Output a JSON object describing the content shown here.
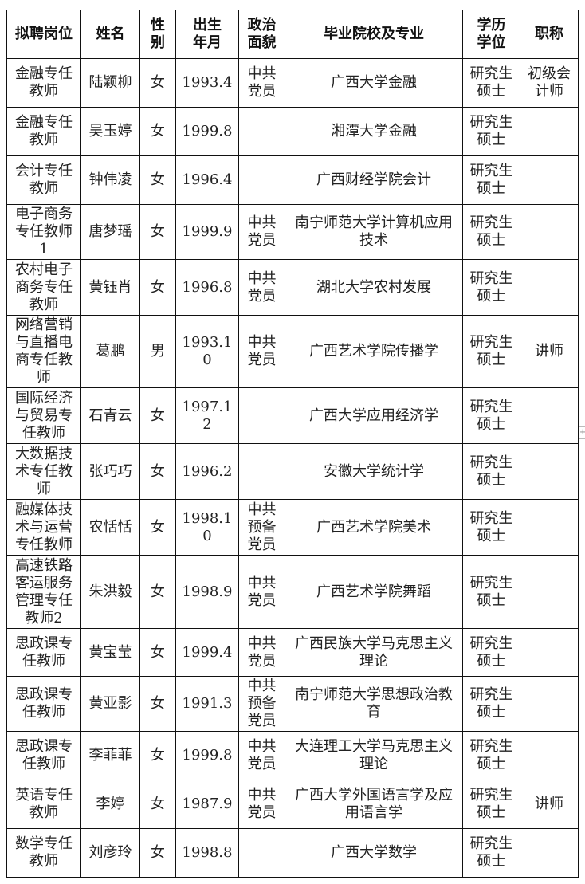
{
  "table": {
    "headers": [
      "拟聘岗位",
      "姓名",
      "性别",
      "出生年月",
      "政治面貌",
      "毕业院校及专业",
      "学历学位",
      "职称"
    ],
    "rows": [
      [
        "金融专任教师",
        "陆颖柳",
        "女",
        "1993.4",
        "中共党员",
        "广西大学金融",
        "研究生硕士",
        "初级会计师"
      ],
      [
        "金融专任教师",
        "吴玉婷",
        "女",
        "1999.8",
        "",
        "湘潭大学金融",
        "研究生硕士",
        ""
      ],
      [
        "会计专任教师",
        "钟伟凌",
        "女",
        "1996.4",
        "",
        "广西财经学院会计",
        "研究生硕士",
        ""
      ],
      [
        "电子商务专任教师1",
        "唐梦瑶",
        "女",
        "1999.9",
        "中共党员",
        "南宁师范大学计算机应用技术",
        "研究生硕士",
        ""
      ],
      [
        "农村电子商务专任教师",
        "黄钰肖",
        "女",
        "1996.8",
        "中共党员",
        "湖北大学农村发展",
        "研究生硕士",
        ""
      ],
      [
        "网络营销与直播电商专任教师",
        "葛鹏",
        "男",
        "1993.10",
        "中共党员",
        "广西艺术学院传播学",
        "研究生硕士",
        "讲师"
      ],
      [
        "国际经济与贸易专任教师",
        "石青云",
        "女",
        "1997.12",
        "",
        "广西大学应用经济学",
        "研究生硕士",
        ""
      ],
      [
        "大数据技术专任教师",
        "张巧巧",
        "女",
        "1996.2",
        "",
        "安徽大学统计学",
        "研究生硕士",
        ""
      ],
      [
        "融媒体技术与运营专任教师",
        "农恬恬",
        "女",
        "1998.10",
        "中共预备党员",
        "广西艺术学院美术",
        "研究生硕士",
        ""
      ],
      [
        "高速铁路客运服务管理专任教师2",
        "朱洪毅",
        "女",
        "1998.9",
        "中共党员",
        "广西艺术学院舞蹈",
        "研究生硕士",
        ""
      ],
      [
        "思政课专任教师",
        "黄宝莹",
        "女",
        "1999.4",
        "中共党员",
        "广西民族大学马克思主义理论",
        "研究生硕士",
        ""
      ],
      [
        "思政课专任教师",
        "黄亚影",
        "女",
        "1991.3",
        "中共预备党员",
        "南宁师范大学思想政治教育",
        "研究生硕士",
        ""
      ],
      [
        "思政课专任教师",
        "李菲菲",
        "女",
        "1999.8",
        "中共党员",
        "大连理工大学马克思主义理论",
        "研究生硕士",
        ""
      ],
      [
        "英语专任教师",
        "李婷",
        "女",
        "1987.9",
        "中共党员",
        "广西大学外国语言学及应用语言学",
        "研究生硕士",
        "讲师"
      ],
      [
        "数学专任教师",
        "刘彦玲",
        "女",
        "1998.8",
        "",
        "广西大学数学",
        "研究生硕士",
        ""
      ]
    ]
  },
  "table_handle_icon": "+"
}
